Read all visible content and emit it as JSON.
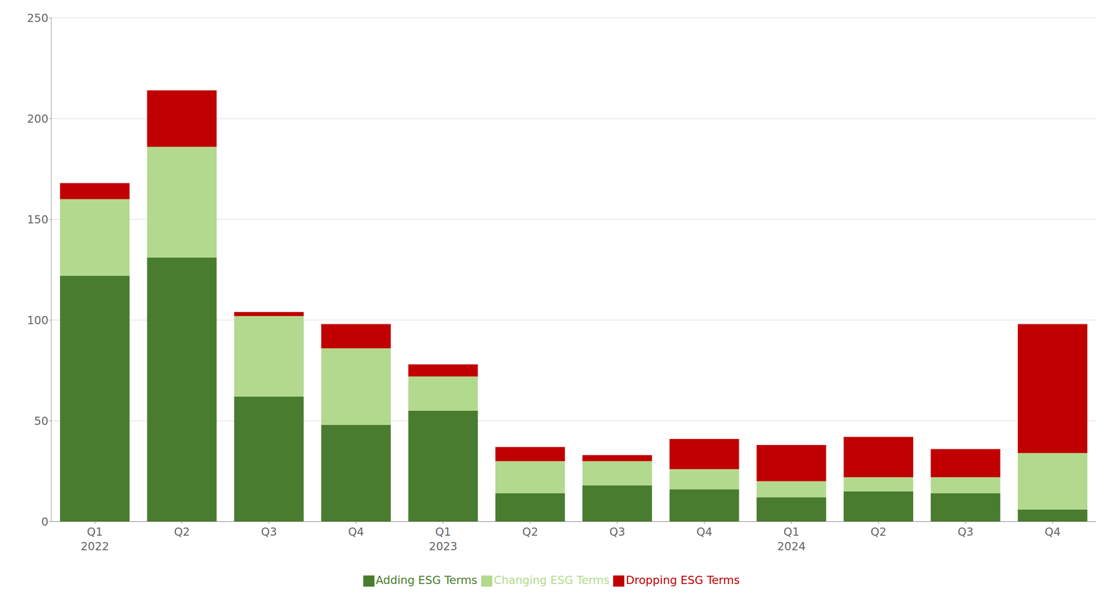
{
  "chart_data": {
    "type": "bar",
    "stacked": true,
    "categories": [
      "Q1\n2022",
      "Q2",
      "Q3",
      "Q4",
      "Q1\n2023",
      "Q2",
      "Q3",
      "Q4",
      "Q1\n2024",
      "Q2",
      "Q3",
      "Q4"
    ],
    "series": [
      {
        "name": "Adding ESG Terms",
        "color": "#4a7c2f",
        "values": [
          122,
          131,
          62,
          48,
          55,
          14,
          18,
          16,
          12,
          15,
          14,
          6
        ]
      },
      {
        "name": "Changing ESG Terms",
        "color": "#b3d98e",
        "values": [
          38,
          55,
          40,
          38,
          17,
          16,
          12,
          10,
          8,
          7,
          8,
          28
        ]
      },
      {
        "name": "Dropping ESG Terms",
        "color": "#c00000",
        "values": [
          8,
          28,
          2,
          12,
          6,
          7,
          3,
          15,
          18,
          20,
          14,
          64
        ]
      }
    ],
    "ylim": [
      0,
      250
    ],
    "yticks": [
      0,
      50,
      100,
      150,
      200,
      250
    ],
    "grid": true,
    "legend": "bottom"
  }
}
